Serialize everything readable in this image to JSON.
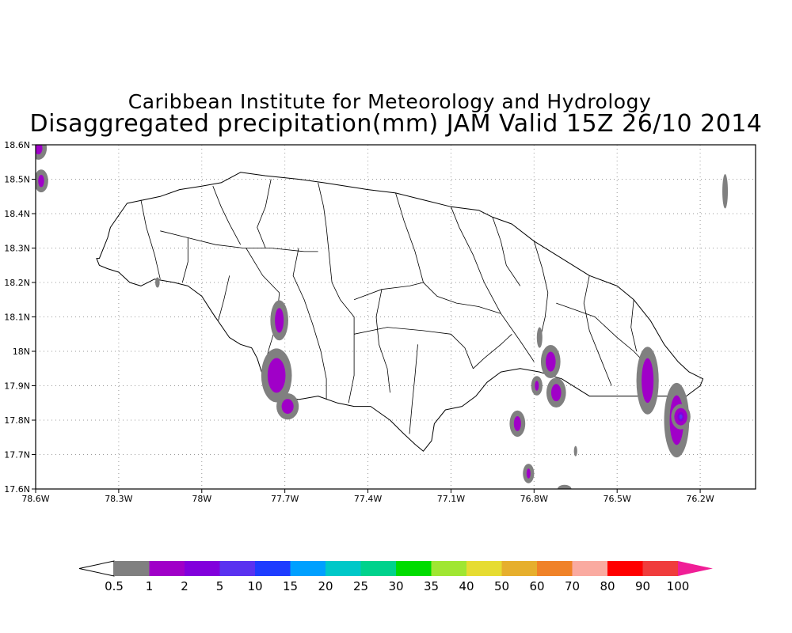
{
  "header": {
    "line1": "Caribbean Institute for Meteorology and Hydrology",
    "line2": "Disaggregated precipitation(mm) JAM Valid 15Z 26/10 2014"
  },
  "map": {
    "lon_range": [
      -78.6,
      -76.0
    ],
    "lat_range": [
      17.6,
      18.6
    ],
    "lon_ticks": [
      {
        "value": -78.6,
        "label": "78.6W"
      },
      {
        "value": -78.3,
        "label": "78.3W"
      },
      {
        "value": -78.0,
        "label": "78W"
      },
      {
        "value": -77.7,
        "label": "77.7W"
      },
      {
        "value": -77.4,
        "label": "77.4W"
      },
      {
        "value": -77.1,
        "label": "77.1W"
      },
      {
        "value": -76.8,
        "label": "76.8W"
      },
      {
        "value": -76.5,
        "label": "76.5W"
      },
      {
        "value": -76.2,
        "label": "76.2W"
      }
    ],
    "lat_ticks": [
      {
        "value": 17.6,
        "label": "17.6N"
      },
      {
        "value": 17.7,
        "label": "17.7N"
      },
      {
        "value": 17.8,
        "label": "17.8N"
      },
      {
        "value": 17.9,
        "label": "17.9N"
      },
      {
        "value": 18.0,
        "label": "18N"
      },
      {
        "value": 18.1,
        "label": "18.1N"
      },
      {
        "value": 18.2,
        "label": "18.2N"
      },
      {
        "value": 18.3,
        "label": "18.3N"
      },
      {
        "value": 18.4,
        "label": "18.4N"
      },
      {
        "value": 18.5,
        "label": "18.5N"
      },
      {
        "value": 18.6,
        "label": "18.6N"
      }
    ],
    "grid": true
  },
  "colorbar": {
    "labels": [
      "0.5",
      "1",
      "2",
      "5",
      "10",
      "15",
      "20",
      "25",
      "30",
      "35",
      "40",
      "50",
      "60",
      "70",
      "80",
      "90",
      "100"
    ],
    "colors": [
      "#808080",
      "#a000c8",
      "#8200dc",
      "#5a32f0",
      "#1e3cff",
      "#00a0ff",
      "#00c8c8",
      "#00d28c",
      "#00dc00",
      "#a0e632",
      "#e6dc32",
      "#e6af2d",
      "#f08228",
      "#faaaa0",
      "#ff0000",
      "#f03c3c"
    ],
    "under_color": "#ffffff",
    "over_color": "#f01e96"
  },
  "precip_blobs": [
    {
      "lon": -78.59,
      "lat": 18.59,
      "r_lon": 0.02,
      "r_lat": 0.025,
      "level": 1
    },
    {
      "lon": -78.58,
      "lat": 18.495,
      "r_lon": 0.015,
      "r_lat": 0.025,
      "level": 1
    },
    {
      "lon": -76.11,
      "lat": 18.465,
      "r_lon": 0.01,
      "r_lat": 0.05,
      "level": 0
    },
    {
      "lon": -78.16,
      "lat": 18.2,
      "r_lon": 0.008,
      "r_lat": 0.015,
      "level": 0
    },
    {
      "lon": -77.72,
      "lat": 18.09,
      "r_lon": 0.022,
      "r_lat": 0.05,
      "level": 1
    },
    {
      "lon": -77.73,
      "lat": 17.93,
      "r_lon": 0.045,
      "r_lat": 0.07,
      "level": 1
    },
    {
      "lon": -77.69,
      "lat": 17.84,
      "r_lon": 0.03,
      "r_lat": 0.03,
      "level": 1
    },
    {
      "lon": -76.78,
      "lat": 18.04,
      "r_lon": 0.01,
      "r_lat": 0.03,
      "level": 0
    },
    {
      "lon": -76.74,
      "lat": 17.97,
      "r_lon": 0.025,
      "r_lat": 0.04,
      "level": 1
    },
    {
      "lon": -76.72,
      "lat": 17.88,
      "r_lon": 0.025,
      "r_lat": 0.035,
      "level": 1
    },
    {
      "lon": -76.79,
      "lat": 17.9,
      "r_lon": 0.01,
      "r_lat": 0.02,
      "level": 1
    },
    {
      "lon": -76.86,
      "lat": 17.79,
      "r_lon": 0.018,
      "r_lat": 0.03,
      "level": 1
    },
    {
      "lon": -76.82,
      "lat": 17.645,
      "r_lon": 0.01,
      "r_lat": 0.02,
      "level": 1
    },
    {
      "lon": -76.65,
      "lat": 17.71,
      "r_lon": 0.006,
      "r_lat": 0.015,
      "level": 0
    },
    {
      "lon": -76.69,
      "lat": 17.6,
      "r_lon": 0.025,
      "r_lat": 0.012,
      "level": 0
    },
    {
      "lon": -76.39,
      "lat": 17.915,
      "r_lon": 0.03,
      "r_lat": 0.09,
      "level": 1
    },
    {
      "lon": -76.285,
      "lat": 17.8,
      "r_lon": 0.035,
      "r_lat": 0.1,
      "level": 1
    },
    {
      "lon": -76.27,
      "lat": 17.81,
      "r_lon": 0.004,
      "r_lat": 0.012,
      "level": 3
    }
  ],
  "island": {
    "coast": [
      [
        -78.37,
        18.27
      ],
      [
        -78.34,
        18.33
      ],
      [
        -78.33,
        18.36
      ],
      [
        -78.27,
        18.43
      ],
      [
        -78.21,
        18.44
      ],
      [
        -78.15,
        18.45
      ],
      [
        -78.08,
        18.47
      ],
      [
        -78.0,
        18.48
      ],
      [
        -77.93,
        18.49
      ],
      [
        -77.86,
        18.52
      ],
      [
        -77.77,
        18.51
      ],
      [
        -77.65,
        18.5
      ],
      [
        -77.56,
        18.49
      ],
      [
        -77.48,
        18.48
      ],
      [
        -77.4,
        18.47
      ],
      [
        -77.3,
        18.46
      ],
      [
        -77.2,
        18.44
      ],
      [
        -77.1,
        18.42
      ],
      [
        -77.0,
        18.41
      ],
      [
        -76.95,
        18.39
      ],
      [
        -76.88,
        18.37
      ],
      [
        -76.8,
        18.32
      ],
      [
        -76.7,
        18.27
      ],
      [
        -76.6,
        18.22
      ],
      [
        -76.5,
        18.19
      ],
      [
        -76.44,
        18.15
      ],
      [
        -76.38,
        18.09
      ],
      [
        -76.33,
        18.02
      ],
      [
        -76.28,
        17.97
      ],
      [
        -76.24,
        17.94
      ],
      [
        -76.19,
        17.92
      ],
      [
        -76.2,
        17.9
      ],
      [
        -76.25,
        17.87
      ],
      [
        -76.32,
        17.87
      ],
      [
        -76.4,
        17.87
      ],
      [
        -76.52,
        17.87
      ],
      [
        -76.6,
        17.87
      ],
      [
        -76.7,
        17.92
      ],
      [
        -76.78,
        17.94
      ],
      [
        -76.85,
        17.95
      ],
      [
        -76.92,
        17.94
      ],
      [
        -76.97,
        17.91
      ],
      [
        -77.01,
        17.87
      ],
      [
        -77.06,
        17.84
      ],
      [
        -77.12,
        17.83
      ],
      [
        -77.16,
        17.79
      ],
      [
        -77.17,
        17.74
      ],
      [
        -77.2,
        17.71
      ],
      [
        -77.23,
        17.73
      ],
      [
        -77.27,
        17.76
      ],
      [
        -77.32,
        17.8
      ],
      [
        -77.39,
        17.84
      ],
      [
        -77.45,
        17.84
      ],
      [
        -77.51,
        17.85
      ],
      [
        -77.58,
        17.87
      ],
      [
        -77.65,
        17.86
      ],
      [
        -77.71,
        17.87
      ],
      [
        -77.76,
        17.88
      ],
      [
        -77.78,
        17.93
      ],
      [
        -77.8,
        17.98
      ],
      [
        -77.82,
        18.01
      ],
      [
        -77.86,
        18.02
      ],
      [
        -77.9,
        18.04
      ],
      [
        -77.96,
        18.11
      ],
      [
        -78.0,
        18.16
      ],
      [
        -78.05,
        18.19
      ],
      [
        -78.1,
        18.2
      ],
      [
        -78.17,
        18.21
      ],
      [
        -78.22,
        18.19
      ],
      [
        -78.26,
        18.2
      ],
      [
        -78.3,
        18.23
      ],
      [
        -78.34,
        18.24
      ],
      [
        -78.37,
        18.25
      ],
      [
        -78.38,
        18.27
      ]
    ],
    "parishes": [
      [
        [
          -78.22,
          18.44
        ],
        [
          -78.2,
          18.36
        ],
        [
          -78.17,
          18.28
        ],
        [
          -78.15,
          18.21
        ]
      ],
      [
        [
          -78.15,
          18.35
        ],
        [
          -78.05,
          18.33
        ],
        [
          -77.95,
          18.31
        ],
        [
          -77.85,
          18.3
        ],
        [
          -77.75,
          18.3
        ],
        [
          -77.63,
          18.29
        ],
        [
          -77.58,
          18.29
        ]
      ],
      [
        [
          -77.96,
          18.48
        ],
        [
          -77.93,
          18.42
        ],
        [
          -77.9,
          18.37
        ],
        [
          -77.86,
          18.31
        ]
      ],
      [
        [
          -77.75,
          18.5
        ],
        [
          -77.77,
          18.42
        ],
        [
          -77.8,
          18.36
        ],
        [
          -77.77,
          18.3
        ]
      ],
      [
        [
          -77.84,
          18.3
        ],
        [
          -77.78,
          18.22
        ],
        [
          -77.72,
          18.17
        ],
        [
          -77.73,
          18.08
        ],
        [
          -77.76,
          18.0
        ],
        [
          -77.78,
          17.93
        ]
      ],
      [
        [
          -77.58,
          18.49
        ],
        [
          -77.56,
          18.42
        ],
        [
          -77.55,
          18.36
        ],
        [
          -77.54,
          18.28
        ],
        [
          -77.53,
          18.2
        ],
        [
          -77.5,
          18.15
        ],
        [
          -77.45,
          18.1
        ],
        [
          -77.45,
          18.0
        ],
        [
          -77.45,
          17.93
        ],
        [
          -77.47,
          17.85
        ]
      ],
      [
        [
          -77.3,
          18.46
        ],
        [
          -77.27,
          18.38
        ],
        [
          -77.23,
          18.29
        ],
        [
          -77.2,
          18.2
        ],
        [
          -77.15,
          18.16
        ],
        [
          -77.08,
          18.14
        ],
        [
          -77.0,
          18.13
        ],
        [
          -76.92,
          18.11
        ]
      ],
      [
        [
          -77.1,
          18.42
        ],
        [
          -77.07,
          18.36
        ],
        [
          -77.02,
          18.28
        ],
        [
          -76.98,
          18.2
        ],
        [
          -76.92,
          18.11
        ]
      ],
      [
        [
          -77.45,
          18.15
        ],
        [
          -77.35,
          18.18
        ],
        [
          -77.25,
          18.19
        ],
        [
          -77.2,
          18.2
        ]
      ],
      [
        [
          -77.45,
          18.05
        ],
        [
          -77.33,
          18.07
        ],
        [
          -77.2,
          18.06
        ],
        [
          -77.1,
          18.05
        ],
        [
          -77.05,
          18.01
        ],
        [
          -77.02,
          17.95
        ]
      ],
      [
        [
          -77.22,
          18.02
        ],
        [
          -77.23,
          17.93
        ],
        [
          -77.24,
          17.85
        ],
        [
          -77.25,
          17.76
        ]
      ],
      [
        [
          -76.92,
          18.11
        ],
        [
          -76.85,
          18.03
        ],
        [
          -76.8,
          17.97
        ]
      ],
      [
        [
          -76.8,
          18.32
        ],
        [
          -76.77,
          18.24
        ],
        [
          -76.75,
          18.17
        ],
        [
          -76.76,
          18.1
        ],
        [
          -76.78,
          18.03
        ]
      ],
      [
        [
          -76.72,
          18.14
        ],
        [
          -76.65,
          18.12
        ],
        [
          -76.58,
          18.1
        ],
        [
          -76.5,
          18.04
        ],
        [
          -76.44,
          18.0
        ],
        [
          -76.38,
          17.95
        ]
      ],
      [
        [
          -76.6,
          18.22
        ],
        [
          -76.62,
          18.14
        ],
        [
          -76.6,
          18.06
        ],
        [
          -76.56,
          17.98
        ],
        [
          -76.52,
          17.9
        ]
      ],
      [
        [
          -76.44,
          18.15
        ],
        [
          -76.45,
          18.07
        ],
        [
          -76.43,
          18.0
        ]
      ],
      [
        [
          -77.65,
          18.3
        ],
        [
          -77.67,
          18.22
        ],
        [
          -77.63,
          18.15
        ],
        [
          -77.6,
          18.08
        ],
        [
          -77.57,
          18.0
        ],
        [
          -77.55,
          17.92
        ],
        [
          -77.55,
          17.86
        ]
      ],
      [
        [
          -78.05,
          18.33
        ],
        [
          -78.05,
          18.26
        ],
        [
          -78.07,
          18.2
        ]
      ],
      [
        [
          -77.9,
          18.22
        ],
        [
          -77.92,
          18.15
        ],
        [
          -77.94,
          18.09
        ]
      ],
      [
        [
          -77.35,
          18.18
        ],
        [
          -77.37,
          18.1
        ],
        [
          -77.36,
          18.02
        ],
        [
          -77.33,
          17.95
        ],
        [
          -77.32,
          17.88
        ]
      ],
      [
        [
          -76.95,
          18.39
        ],
        [
          -76.92,
          18.32
        ],
        [
          -76.9,
          18.25
        ],
        [
          -76.85,
          18.19
        ]
      ],
      [
        [
          -77.02,
          17.95
        ],
        [
          -76.98,
          17.98
        ],
        [
          -76.92,
          18.02
        ],
        [
          -76.88,
          18.05
        ]
      ]
    ]
  }
}
